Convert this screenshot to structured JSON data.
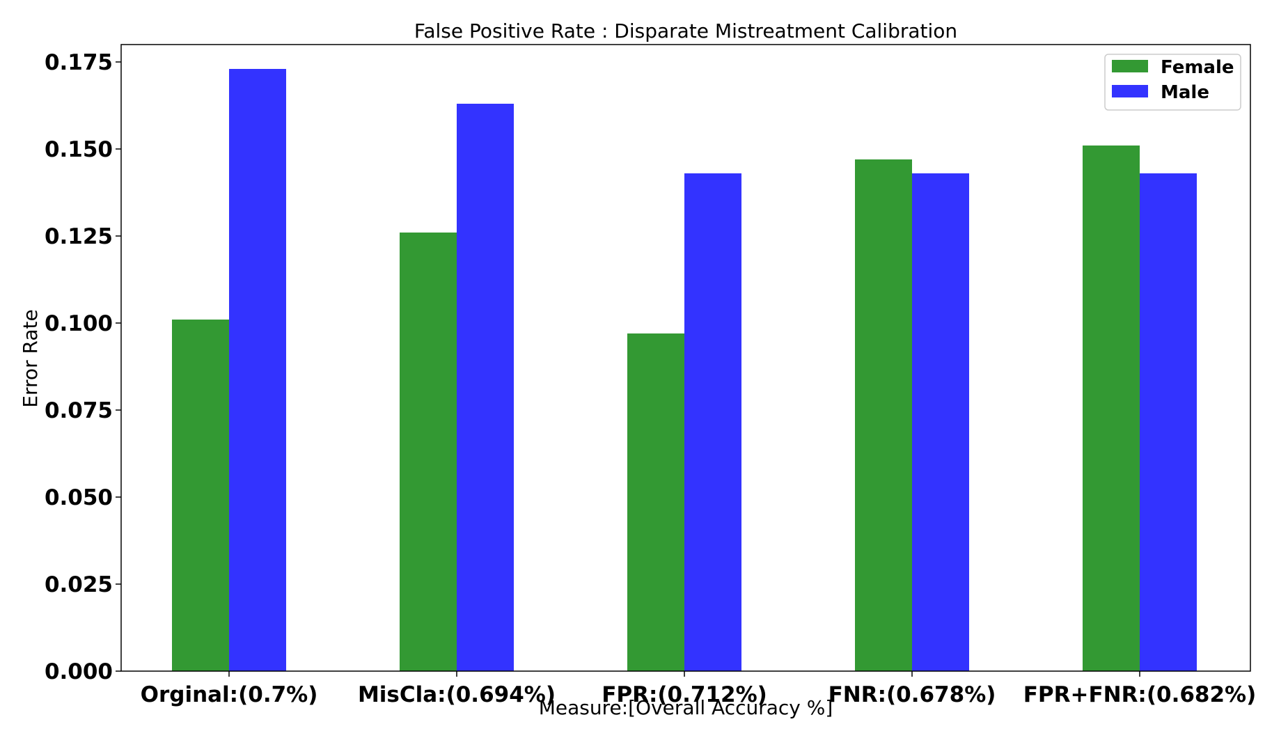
{
  "chart_data": {
    "type": "bar",
    "title": "False Positive Rate : Disparate Mistreatment Calibration",
    "xlabel": "Measure:[Overall Accuracy %]",
    "ylabel": "Error Rate",
    "categories": [
      "Orginal:(0.7%)",
      "MisCla:(0.694%)",
      "FPR:(0.712%)",
      "FNR:(0.678%)",
      "FPR+FNR:(0.682%)"
    ],
    "series": [
      {
        "name": "Female",
        "color": "#339933",
        "values": [
          0.101,
          0.126,
          0.097,
          0.147,
          0.151
        ]
      },
      {
        "name": "Male",
        "color": "#3333ff",
        "values": [
          0.173,
          0.163,
          0.143,
          0.143,
          0.143
        ]
      }
    ],
    "ylim": [
      0,
      0.18
    ],
    "yticks": [
      "0.000",
      "0.025",
      "0.050",
      "0.075",
      "0.100",
      "0.125",
      "0.150",
      "0.175"
    ],
    "grid": false,
    "legend_position": "top-right"
  }
}
